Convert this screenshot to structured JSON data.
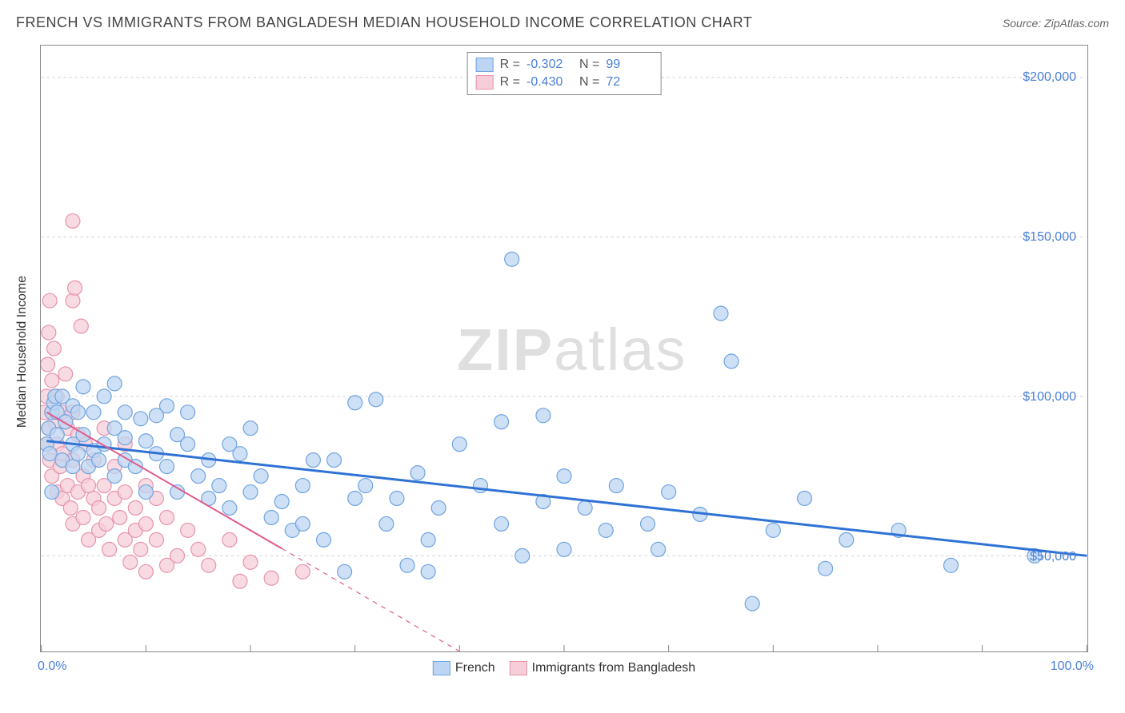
{
  "header": {
    "title": "FRENCH VS IMMIGRANTS FROM BANGLADESH MEDIAN HOUSEHOLD INCOME CORRELATION CHART",
    "source_label": "Source: ",
    "source_name": "ZipAtlas.com"
  },
  "watermark": {
    "pre": "ZIP",
    "post": "atlas"
  },
  "axes": {
    "y_label": "Median Household Income",
    "x_min": 0,
    "x_max": 100,
    "y_min": 20000,
    "y_max": 210000,
    "x_ticks": [
      0,
      10,
      20,
      30,
      40,
      50,
      60,
      70,
      80,
      90,
      100
    ],
    "x_tick_labels_shown": {
      "0": "0.0%",
      "100": "100.0%"
    },
    "y_gridlines": [
      50000,
      100000,
      150000,
      200000
    ],
    "y_tick_labels": {
      "50000": "$50,000",
      "100000": "$100,000",
      "150000": "$150,000",
      "200000": "$200,000"
    },
    "grid_color": "#cccccc",
    "tick_label_color": "#4a7fd8",
    "tick_label_fontsize": 16,
    "axis_label_fontsize": 16,
    "border_color": "#888888"
  },
  "series": {
    "blue": {
      "label": "French",
      "r_value": "-0.302",
      "n_value": "99",
      "marker_fill": "#bdd5f2",
      "marker_stroke": "#6fa3e0",
      "marker_opacity": 0.75,
      "marker_radius": 9,
      "line_color": "#2f72d6",
      "line_width": 3,
      "line_start": [
        0.5,
        86000
      ],
      "line_end": [
        100,
        50000
      ],
      "points": [
        [
          0.5,
          85000
        ],
        [
          0.7,
          90000
        ],
        [
          0.8,
          82000
        ],
        [
          1,
          95000
        ],
        [
          1,
          70000
        ],
        [
          1.2,
          98000
        ],
        [
          1.3,
          100000
        ],
        [
          1.5,
          88000
        ],
        [
          1.5,
          95000
        ],
        [
          2,
          80000
        ],
        [
          2,
          100000
        ],
        [
          2.3,
          92000
        ],
        [
          3,
          97000
        ],
        [
          3,
          85000
        ],
        [
          3,
          78000
        ],
        [
          3.5,
          82000
        ],
        [
          3.5,
          95000
        ],
        [
          4,
          103000
        ],
        [
          4,
          88000
        ],
        [
          4.5,
          78000
        ],
        [
          5,
          83000
        ],
        [
          5,
          95000
        ],
        [
          5.5,
          80000
        ],
        [
          6,
          100000
        ],
        [
          6,
          85000
        ],
        [
          7,
          75000
        ],
        [
          7,
          90000
        ],
        [
          7,
          104000
        ],
        [
          8,
          95000
        ],
        [
          8,
          80000
        ],
        [
          8,
          87000
        ],
        [
          9,
          78000
        ],
        [
          9.5,
          93000
        ],
        [
          10,
          86000
        ],
        [
          10,
          70000
        ],
        [
          11,
          94000
        ],
        [
          11,
          82000
        ],
        [
          12,
          97000
        ],
        [
          12,
          78000
        ],
        [
          13,
          88000
        ],
        [
          13,
          70000
        ],
        [
          14,
          85000
        ],
        [
          14,
          95000
        ],
        [
          15,
          75000
        ],
        [
          16,
          80000
        ],
        [
          16,
          68000
        ],
        [
          17,
          72000
        ],
        [
          18,
          85000
        ],
        [
          18,
          65000
        ],
        [
          19,
          82000
        ],
        [
          20,
          90000
        ],
        [
          20,
          70000
        ],
        [
          21,
          75000
        ],
        [
          22,
          62000
        ],
        [
          23,
          67000
        ],
        [
          24,
          58000
        ],
        [
          25,
          72000
        ],
        [
          25,
          60000
        ],
        [
          26,
          80000
        ],
        [
          27,
          55000
        ],
        [
          28,
          80000
        ],
        [
          29,
          45000
        ],
        [
          30,
          68000
        ],
        [
          30,
          98000
        ],
        [
          31,
          72000
        ],
        [
          32,
          99000
        ],
        [
          33,
          60000
        ],
        [
          34,
          68000
        ],
        [
          35,
          47000
        ],
        [
          36,
          76000
        ],
        [
          37,
          55000
        ],
        [
          37,
          45000
        ],
        [
          38,
          65000
        ],
        [
          40,
          85000
        ],
        [
          42,
          72000
        ],
        [
          44,
          60000
        ],
        [
          44,
          92000
        ],
        [
          45,
          143000
        ],
        [
          46,
          50000
        ],
        [
          48,
          67000
        ],
        [
          48,
          94000
        ],
        [
          50,
          75000
        ],
        [
          50,
          52000
        ],
        [
          52,
          65000
        ],
        [
          54,
          58000
        ],
        [
          55,
          72000
        ],
        [
          58,
          60000
        ],
        [
          59,
          52000
        ],
        [
          60,
          70000
        ],
        [
          63,
          63000
        ],
        [
          65,
          126000
        ],
        [
          66,
          111000
        ],
        [
          68,
          35000
        ],
        [
          70,
          58000
        ],
        [
          73,
          68000
        ],
        [
          75,
          46000
        ],
        [
          77,
          55000
        ],
        [
          82,
          58000
        ],
        [
          87,
          47000
        ],
        [
          95,
          50000
        ]
      ]
    },
    "pink": {
      "label": "Immigrants from Bangladesh",
      "r_value": "-0.430",
      "n_value": "72",
      "marker_fill": "#f6cdd8",
      "marker_stroke": "#e893aa",
      "marker_opacity": 0.75,
      "marker_radius": 9,
      "line_color": "#e05a8a",
      "line_width": 2,
      "line_solid_end_x": 23,
      "line_start": [
        0.5,
        95000
      ],
      "line_end": [
        40,
        20000
      ],
      "points": [
        [
          0.3,
          95000
        ],
        [
          0.5,
          100000
        ],
        [
          0.5,
          85000
        ],
        [
          0.6,
          110000
        ],
        [
          0.7,
          120000
        ],
        [
          0.7,
          90000
        ],
        [
          0.8,
          130000
        ],
        [
          0.8,
          80000
        ],
        [
          1,
          105000
        ],
        [
          1,
          95000
        ],
        [
          1,
          75000
        ],
        [
          1.2,
          115000
        ],
        [
          1.3,
          92000
        ],
        [
          1.5,
          100000
        ],
        [
          1.5,
          85000
        ],
        [
          1.5,
          70000
        ],
        [
          1.8,
          78000
        ],
        [
          2,
          95000
        ],
        [
          2,
          82000
        ],
        [
          2,
          68000
        ],
        [
          2.3,
          107000
        ],
        [
          2.5,
          72000
        ],
        [
          2.5,
          90000
        ],
        [
          2.8,
          65000
        ],
        [
          3,
          155000
        ],
        [
          3,
          130000
        ],
        [
          3,
          95000
        ],
        [
          3,
          80000
        ],
        [
          3,
          60000
        ],
        [
          3.2,
          134000
        ],
        [
          3.5,
          88000
        ],
        [
          3.5,
          70000
        ],
        [
          3.8,
          122000
        ],
        [
          4,
          75000
        ],
        [
          4,
          62000
        ],
        [
          4.2,
          85000
        ],
        [
          4.5,
          55000
        ],
        [
          4.5,
          72000
        ],
        [
          5,
          68000
        ],
        [
          5,
          80000
        ],
        [
          5.5,
          58000
        ],
        [
          5.5,
          65000
        ],
        [
          6,
          90000
        ],
        [
          6,
          72000
        ],
        [
          6.2,
          60000
        ],
        [
          6.5,
          52000
        ],
        [
          7,
          68000
        ],
        [
          7,
          78000
        ],
        [
          7.5,
          62000
        ],
        [
          8,
          85000
        ],
        [
          8,
          70000
        ],
        [
          8,
          55000
        ],
        [
          8.5,
          48000
        ],
        [
          9,
          65000
        ],
        [
          9,
          58000
        ],
        [
          9.5,
          52000
        ],
        [
          10,
          72000
        ],
        [
          10,
          60000
        ],
        [
          10,
          45000
        ],
        [
          11,
          68000
        ],
        [
          11,
          55000
        ],
        [
          12,
          47000
        ],
        [
          12,
          62000
        ],
        [
          13,
          50000
        ],
        [
          14,
          58000
        ],
        [
          15,
          52000
        ],
        [
          16,
          47000
        ],
        [
          18,
          55000
        ],
        [
          19,
          42000
        ],
        [
          20,
          48000
        ],
        [
          22,
          43000
        ],
        [
          25,
          45000
        ]
      ]
    }
  },
  "legend_top": {
    "r_label": "R =",
    "n_label": "N ="
  },
  "colors": {
    "background": "#ffffff",
    "value_text": "#4a7fd8"
  }
}
